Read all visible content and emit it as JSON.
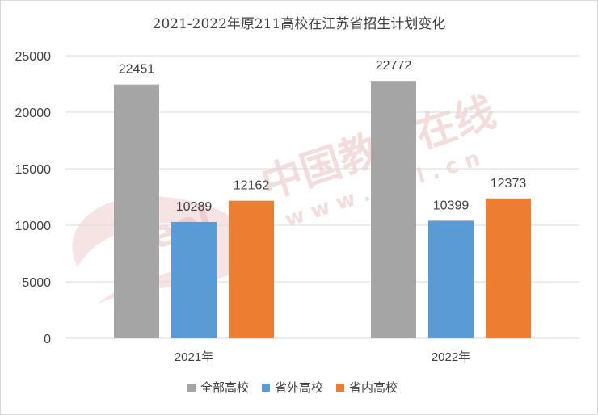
{
  "chart_data": {
    "type": "bar",
    "title": "2021-2022年原211高校在江苏省招生计划变化",
    "categories": [
      "2021年",
      "2022年"
    ],
    "series": [
      {
        "name": "全部高校",
        "values": [
          22451,
          22772
        ],
        "color": "#a5a5a5"
      },
      {
        "name": "省外高校",
        "values": [
          10289,
          10399
        ],
        "color": "#5b9bd5"
      },
      {
        "name": "省内高校",
        "values": [
          12162,
          12373
        ],
        "color": "#ed7d31"
      }
    ],
    "ylim": [
      0,
      25000
    ],
    "yticks": [
      0,
      5000,
      10000,
      15000,
      20000,
      25000
    ],
    "xlabel": "",
    "ylabel": "",
    "grid": true,
    "legend_position": "bottom",
    "data_labels": true
  },
  "watermark": {
    "text_main": "中国教育在线",
    "text_sub": "w w w . e o l . c n",
    "logo_text": "eol",
    "color": "#e6b3b3"
  },
  "colors": {
    "axis_text": "#404040",
    "gridline": "#d9d9d9",
    "border": "#d9d9d9"
  }
}
